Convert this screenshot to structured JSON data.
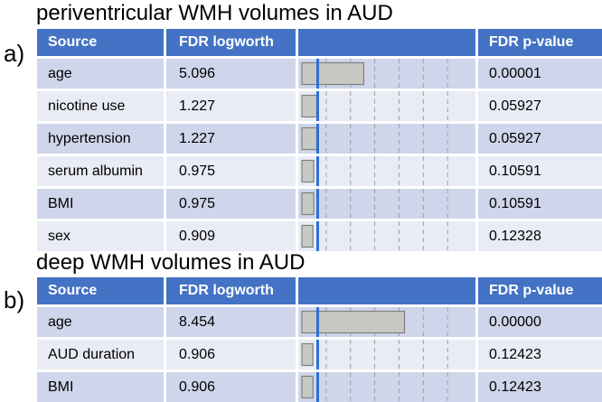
{
  "panels": [
    {
      "label": "a)",
      "title": "periventricular WMH volumes in AUD",
      "headers": {
        "source": "Source",
        "logworth": "FDR logworth",
        "pvalue": "FDR p-value"
      },
      "rows": [
        {
          "source": "age",
          "logworth": "5.096",
          "pvalue": "0.00001"
        },
        {
          "source": "nicotine use",
          "logworth": "1.227",
          "pvalue": "0.05927"
        },
        {
          "source": "hypertension",
          "logworth": "1.227",
          "pvalue": "0.05927"
        },
        {
          "source": "serum albumin",
          "logworth": "0.975",
          "pvalue": "0.10591"
        },
        {
          "source": "BMI",
          "logworth": "0.975",
          "pvalue": "0.10591"
        },
        {
          "source": "sex",
          "logworth": "0.909",
          "pvalue": "0.12328"
        }
      ]
    },
    {
      "label": "b)",
      "title": "deep WMH volumes in AUD",
      "headers": {
        "source": "Source",
        "logworth": "FDR logworth",
        "pvalue": "FDR p-value"
      },
      "rows": [
        {
          "source": "age",
          "logworth": "8.454",
          "pvalue": "0.00000"
        },
        {
          "source": "AUD duration",
          "logworth": "0.906",
          "pvalue": "0.12423"
        },
        {
          "source": "BMI",
          "logworth": "0.906",
          "pvalue": "0.12423"
        }
      ]
    }
  ],
  "chart_data": [
    {
      "type": "bar",
      "title": "periventricular WMH volumes in AUD",
      "categories": [
        "age",
        "nicotine use",
        "hypertension",
        "serum albumin",
        "BMI",
        "sex"
      ],
      "values": [
        5.096,
        1.227,
        1.227,
        0.975,
        0.975,
        0.909
      ],
      "reference_line": 1.301,
      "xlim": [
        0,
        14
      ],
      "dashed_grid_values": [
        2,
        4,
        6,
        8,
        10,
        12
      ]
    },
    {
      "type": "bar",
      "title": "deep WMH volumes in AUD",
      "categories": [
        "age",
        "AUD duration",
        "BMI"
      ],
      "values": [
        8.454,
        0.906,
        0.906
      ],
      "reference_line": 1.301,
      "xlim": [
        0,
        14
      ],
      "dashed_grid_values": [
        2,
        4,
        6,
        8,
        10,
        12
      ]
    }
  ],
  "colors": {
    "header": "#4472c4",
    "row_odd": "#cfd5ea",
    "row_even": "#e9ebf5",
    "bar_fill": "#c8c8c4",
    "bar_stroke": "#808080",
    "reference_line": "#2c6fd6",
    "grid_dash": "#a0a0a0"
  }
}
